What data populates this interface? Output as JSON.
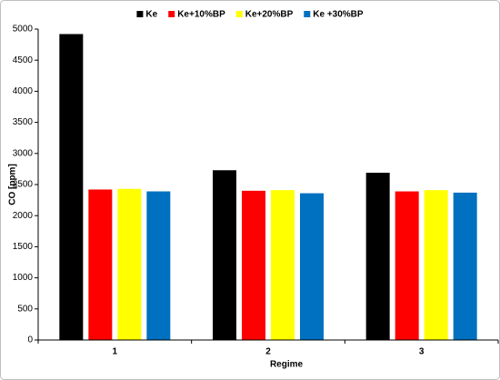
{
  "chart_data": {
    "type": "bar",
    "x_label": "Regime",
    "y_label": "CO [ppm]",
    "categories": [
      "1",
      "2",
      "3"
    ],
    "series": [
      {
        "name": "Ke",
        "color": "#000000",
        "values": [
          4920,
          2730,
          2690
        ]
      },
      {
        "name": "Ke+10%BP",
        "color": "#ff0000",
        "values": [
          2420,
          2400,
          2390
        ]
      },
      {
        "name": "Ke+20%BP",
        "color": "#ffff00",
        "values": [
          2430,
          2410,
          2410
        ]
      },
      {
        "name": "Ke +30%BP",
        "color": "#0070c0",
        "values": [
          2390,
          2360,
          2370
        ]
      }
    ],
    "ylim": [
      0,
      5000
    ],
    "yticks": [
      0,
      500,
      1000,
      1500,
      2000,
      2500,
      3000,
      3500,
      4000,
      4500,
      5000
    ],
    "grid": false,
    "legend": "top"
  }
}
